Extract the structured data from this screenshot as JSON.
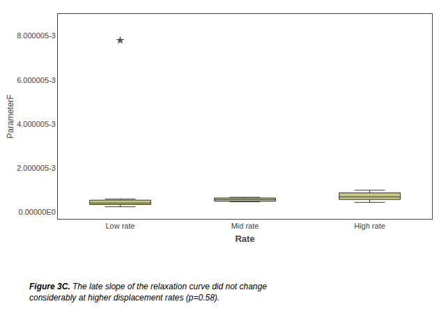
{
  "chart_data": {
    "type": "box",
    "xlabel": "Rate",
    "ylabel": "ParameterF",
    "categories": [
      "Low rate",
      "Mid rate",
      "High rate"
    ],
    "q1": [
      0.00035,
      0.0005,
      0.00058
    ],
    "median": [
      0.00042,
      0.00058,
      0.0007
    ],
    "q3": [
      0.00055,
      0.00065,
      0.00088
    ],
    "whisker_low": [
      0.00025,
      0.00048,
      0.00045
    ],
    "whisker_high": [
      0.0006,
      0.00068,
      0.001
    ],
    "color": "#c8c87a",
    "outliers": {
      "categories": [
        "Low rate"
      ],
      "values": [
        0.0078
      ],
      "marker": "star",
      "color": "#555555"
    },
    "ylim": [
      -0.0003,
      0.009
    ],
    "yticks": [
      {
        "value": 0.0,
        "label": "0.00000E0"
      },
      {
        "value": 0.002,
        "label": "2.000005-3"
      },
      {
        "value": 0.004,
        "label": "4.000005-3"
      },
      {
        "value": 0.006,
        "label": "6.000005-3"
      },
      {
        "value": 0.008,
        "label": "8.000005-3"
      }
    ],
    "grid": false,
    "annotations": [
      "Figure 3C.",
      " The late slope of the relaxation curve did not change\nconsiderably at higher displacement rates (p=0.58)."
    ]
  }
}
